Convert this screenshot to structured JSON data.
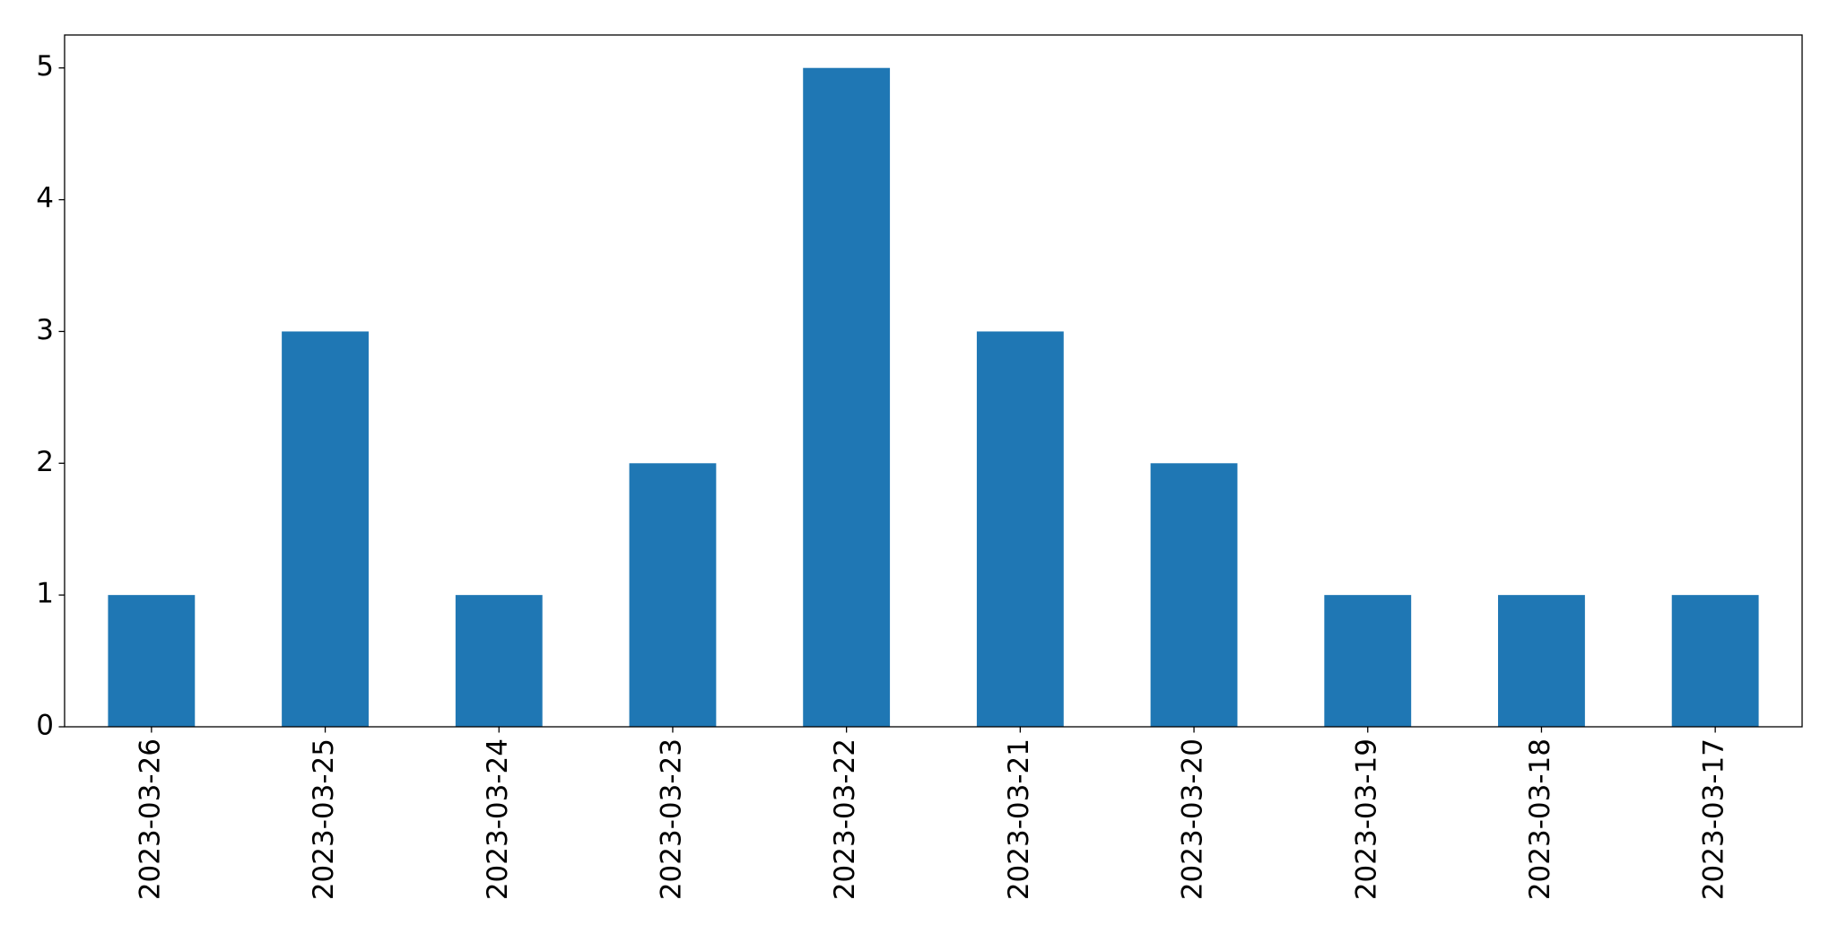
{
  "chart_data": {
    "type": "bar",
    "categories": [
      "2023-03-26",
      "2023-03-25",
      "2023-03-24",
      "2023-03-23",
      "2023-03-22",
      "2023-03-21",
      "2023-03-20",
      "2023-03-19",
      "2023-03-18",
      "2023-03-17"
    ],
    "values": [
      1,
      3,
      1,
      2,
      5,
      3,
      2,
      1,
      1,
      1
    ],
    "color": "#1f77b4",
    "ylim": [
      0,
      5.25
    ],
    "yticks": [
      0,
      1,
      2,
      3,
      4,
      5
    ],
    "grid": false
  }
}
